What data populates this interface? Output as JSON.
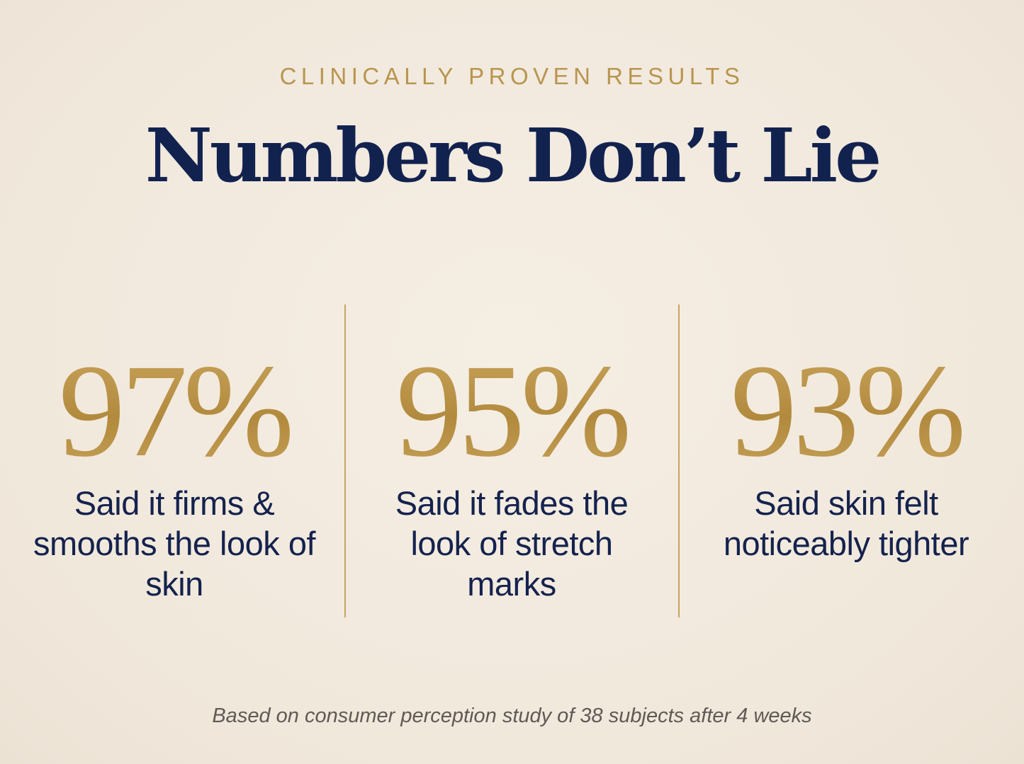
{
  "eyebrow": "CLINICALLY PROVEN RESULTS",
  "headline": "Numbers Don’t Lie",
  "stats": [
    {
      "value": "97%",
      "label": "Said it firms & smooths the look of skin"
    },
    {
      "value": "95%",
      "label": "Said it fades the look of stretch marks"
    },
    {
      "value": "93%",
      "label": "Said skin felt noticeably tighter"
    }
  ],
  "footnote": "Based on consumer perception study of 38 subjects after 4 weeks",
  "colors": {
    "background": "#f3ebdf",
    "gold": "#bf9a4c",
    "navy": "#12224f",
    "footnote_gray": "#5f5a55"
  }
}
